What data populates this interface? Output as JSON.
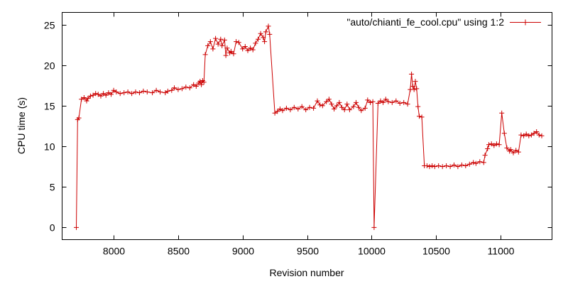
{
  "chart_data": {
    "type": "line",
    "xlabel": "Revision number",
    "ylabel": "CPU time (s)",
    "xlim": [
      7600,
      11400
    ],
    "ylim": [
      -1.5,
      26.5
    ],
    "x_ticks": [
      8000,
      8500,
      9000,
      9500,
      10000,
      10500,
      11000
    ],
    "y_ticks": [
      0,
      5,
      10,
      15,
      20,
      25
    ],
    "grid": false,
    "legend_position": "top-right",
    "color": "#cc0000",
    "series": [
      {
        "name": "\"auto/chianti_fe_cool.cpu\" using 1:2",
        "marker": "plus",
        "points": [
          [
            7710,
            0
          ],
          [
            7720,
            13.3
          ],
          [
            7730,
            13.5
          ],
          [
            7750,
            15.8
          ],
          [
            7770,
            16.0
          ],
          [
            7790,
            15.6
          ],
          [
            7800,
            15.9
          ],
          [
            7820,
            16.2
          ],
          [
            7840,
            16.3
          ],
          [
            7860,
            16.5
          ],
          [
            7880,
            16.4
          ],
          [
            7900,
            16.2
          ],
          [
            7920,
            16.5
          ],
          [
            7940,
            16.3
          ],
          [
            7960,
            16.6
          ],
          [
            7980,
            16.4
          ],
          [
            8000,
            16.9
          ],
          [
            8020,
            16.7
          ],
          [
            8050,
            16.5
          ],
          [
            8080,
            16.6
          ],
          [
            8110,
            16.7
          ],
          [
            8140,
            16.5
          ],
          [
            8170,
            16.7
          ],
          [
            8200,
            16.6
          ],
          [
            8230,
            16.8
          ],
          [
            8260,
            16.7
          ],
          [
            8300,
            16.6
          ],
          [
            8330,
            16.9
          ],
          [
            8360,
            16.7
          ],
          [
            8400,
            16.6
          ],
          [
            8420,
            16.8
          ],
          [
            8450,
            16.9
          ],
          [
            8470,
            17.2
          ],
          [
            8500,
            17.0
          ],
          [
            8530,
            17.1
          ],
          [
            8560,
            17.3
          ],
          [
            8590,
            17.2
          ],
          [
            8620,
            17.6
          ],
          [
            8640,
            17.4
          ],
          [
            8660,
            17.8
          ],
          [
            8670,
            18.0
          ],
          [
            8680,
            17.6
          ],
          [
            8690,
            18.1
          ],
          [
            8700,
            17.9
          ],
          [
            8710,
            21.3
          ],
          [
            8730,
            22.4
          ],
          [
            8750,
            22.9
          ],
          [
            8770,
            22.0
          ],
          [
            8790,
            23.3
          ],
          [
            8810,
            22.6
          ],
          [
            8830,
            23.2
          ],
          [
            8840,
            22.4
          ],
          [
            8860,
            23.1
          ],
          [
            8870,
            21.2
          ],
          [
            8880,
            22.1
          ],
          [
            8900,
            21.5
          ],
          [
            8910,
            21.7
          ],
          [
            8930,
            21.4
          ],
          [
            8950,
            22.9
          ],
          [
            8970,
            22.8
          ],
          [
            9000,
            22.0
          ],
          [
            9020,
            22.3
          ],
          [
            9040,
            21.8
          ],
          [
            9060,
            22.1
          ],
          [
            9080,
            21.9
          ],
          [
            9100,
            22.7
          ],
          [
            9120,
            23.2
          ],
          [
            9140,
            23.9
          ],
          [
            9160,
            23.4
          ],
          [
            9170,
            22.9
          ],
          [
            9180,
            24.1
          ],
          [
            9200,
            24.8
          ],
          [
            9210,
            23.8
          ],
          [
            9250,
            14.1
          ],
          [
            9270,
            14.3
          ],
          [
            9290,
            14.6
          ],
          [
            9310,
            14.4
          ],
          [
            9340,
            14.7
          ],
          [
            9370,
            14.5
          ],
          [
            9400,
            14.8
          ],
          [
            9430,
            14.6
          ],
          [
            9460,
            14.9
          ],
          [
            9490,
            14.5
          ],
          [
            9520,
            14.8
          ],
          [
            9550,
            14.7
          ],
          [
            9580,
            15.6
          ],
          [
            9600,
            15.1
          ],
          [
            9620,
            15.0
          ],
          [
            9650,
            15.5
          ],
          [
            9670,
            15.8
          ],
          [
            9690,
            15.2
          ],
          [
            9710,
            14.6
          ],
          [
            9730,
            15.0
          ],
          [
            9750,
            15.4
          ],
          [
            9770,
            14.8
          ],
          [
            9790,
            14.5
          ],
          [
            9810,
            15.2
          ],
          [
            9830,
            14.5
          ],
          [
            9860,
            14.9
          ],
          [
            9880,
            15.4
          ],
          [
            9900,
            14.8
          ],
          [
            9920,
            14.4
          ],
          [
            9950,
            14.7
          ],
          [
            9970,
            15.7
          ],
          [
            9990,
            15.4
          ],
          [
            10010,
            15.5
          ],
          [
            10020,
            0
          ],
          [
            10050,
            15.3
          ],
          [
            10070,
            15.6
          ],
          [
            10090,
            15.4
          ],
          [
            10110,
            15.8
          ],
          [
            10130,
            15.5
          ],
          [
            10160,
            15.4
          ],
          [
            10190,
            15.6
          ],
          [
            10220,
            15.3
          ],
          [
            10250,
            15.4
          ],
          [
            10280,
            15.2
          ],
          [
            10300,
            17.0
          ],
          [
            10310,
            18.9
          ],
          [
            10320,
            17.4
          ],
          [
            10330,
            17.0
          ],
          [
            10340,
            18.0
          ],
          [
            10350,
            17.1
          ],
          [
            10360,
            14.9
          ],
          [
            10370,
            13.7
          ],
          [
            10390,
            13.6
          ],
          [
            10410,
            7.6
          ],
          [
            10430,
            7.6
          ],
          [
            10450,
            7.5
          ],
          [
            10470,
            7.6
          ],
          [
            10490,
            7.5
          ],
          [
            10520,
            7.6
          ],
          [
            10550,
            7.5
          ],
          [
            10580,
            7.6
          ],
          [
            10610,
            7.5
          ],
          [
            10640,
            7.7
          ],
          [
            10670,
            7.5
          ],
          [
            10700,
            7.7
          ],
          [
            10730,
            7.6
          ],
          [
            10760,
            7.8
          ],
          [
            10790,
            8.0
          ],
          [
            10810,
            7.9
          ],
          [
            10840,
            8.1
          ],
          [
            10870,
            8.0
          ],
          [
            10880,
            8.9
          ],
          [
            10900,
            9.7
          ],
          [
            10910,
            10.2
          ],
          [
            10930,
            10.3
          ],
          [
            10950,
            10.1
          ],
          [
            10970,
            10.3
          ],
          [
            10990,
            10.2
          ],
          [
            11010,
            14.1
          ],
          [
            11030,
            11.6
          ],
          [
            11050,
            9.8
          ],
          [
            11070,
            9.4
          ],
          [
            11080,
            9.6
          ],
          [
            11100,
            9.2
          ],
          [
            11120,
            9.5
          ],
          [
            11140,
            9.3
          ],
          [
            11160,
            11.4
          ],
          [
            11180,
            11.3
          ],
          [
            11200,
            11.5
          ],
          [
            11220,
            11.3
          ],
          [
            11240,
            11.4
          ],
          [
            11260,
            11.6
          ],
          [
            11280,
            11.8
          ],
          [
            11300,
            11.4
          ],
          [
            11320,
            11.3
          ]
        ]
      }
    ]
  }
}
